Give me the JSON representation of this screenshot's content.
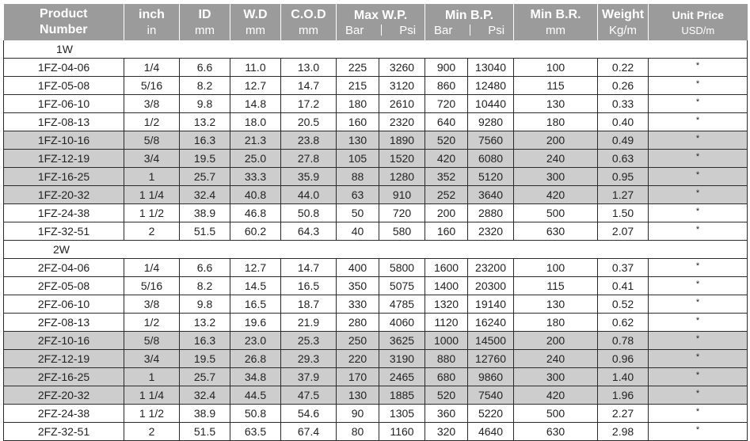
{
  "headers": [
    {
      "key": "product",
      "line1": "Product",
      "line2": "Number"
    },
    {
      "key": "inch",
      "line1": "inch",
      "line2": "in"
    },
    {
      "key": "id",
      "line1": "ID",
      "line2": "mm"
    },
    {
      "key": "wd",
      "line1": "W.D",
      "line2": "mm"
    },
    {
      "key": "cod",
      "line1": "C.O.D",
      "line2": "mm"
    },
    {
      "key": "max_wp",
      "line1": "Max W.P.",
      "sub": [
        "Bar",
        "Psi"
      ]
    },
    {
      "key": "min_bp",
      "line1": "Min B.P.",
      "sub": [
        "Bar",
        "Psi"
      ]
    },
    {
      "key": "min_br",
      "line1": "Min B.R.",
      "line2": "mm"
    },
    {
      "key": "weight",
      "line1": "Weight",
      "line2": "Kg/m"
    },
    {
      "key": "price",
      "line1": "Unit Price",
      "line2": "USD/m"
    }
  ],
  "groups": [
    {
      "label": "1W",
      "rows": [
        {
          "cells": [
            "1FZ-04-06",
            "1/4",
            "6.6",
            "11.0",
            "13.0",
            "225",
            "3260",
            "900",
            "13040",
            "100",
            "0.22",
            "*"
          ],
          "shaded": false
        },
        {
          "cells": [
            "1FZ-05-08",
            "5/16",
            "8.2",
            "12.7",
            "14.7",
            "215",
            "3120",
            "860",
            "12480",
            "115",
            "0.26",
            "*"
          ],
          "shaded": false
        },
        {
          "cells": [
            "1FZ-06-10",
            "3/8",
            "9.8",
            "14.8",
            "17.2",
            "180",
            "2610",
            "720",
            "10440",
            "130",
            "0.33",
            "*"
          ],
          "shaded": false
        },
        {
          "cells": [
            "1FZ-08-13",
            "1/2",
            "13.2",
            "18.0",
            "20.5",
            "160",
            "2320",
            "640",
            "9280",
            "180",
            "0.40",
            "*"
          ],
          "shaded": false
        },
        {
          "cells": [
            "1FZ-10-16",
            "5/8",
            "16.3",
            "21.3",
            "23.8",
            "130",
            "1890",
            "520",
            "7560",
            "200",
            "0.49",
            "*"
          ],
          "shaded": true
        },
        {
          "cells": [
            "1FZ-12-19",
            "3/4",
            "19.5",
            "25.0",
            "27.8",
            "105",
            "1520",
            "420",
            "6080",
            "240",
            "0.63",
            "*"
          ],
          "shaded": true
        },
        {
          "cells": [
            "1FZ-16-25",
            "1",
            "25.7",
            "33.3",
            "35.9",
            "88",
            "1280",
            "352",
            "5120",
            "300",
            "0.95",
            "*"
          ],
          "shaded": true
        },
        {
          "cells": [
            "1FZ-20-32",
            "1 1/4",
            "32.4",
            "40.8",
            "44.0",
            "63",
            "910",
            "252",
            "3640",
            "420",
            "1.27",
            "*"
          ],
          "shaded": true
        },
        {
          "cells": [
            "1FZ-24-38",
            "1 1/2",
            "38.9",
            "46.8",
            "50.8",
            "50",
            "720",
            "200",
            "2880",
            "500",
            "1.50",
            "*"
          ],
          "shaded": false
        },
        {
          "cells": [
            "1FZ-32-51",
            "2",
            "51.5",
            "60.2",
            "64.3",
            "40",
            "580",
            "160",
            "2320",
            "630",
            "2.07",
            "*"
          ],
          "shaded": false
        }
      ]
    },
    {
      "label": "2W",
      "rows": [
        {
          "cells": [
            "2FZ-04-06",
            "1/4",
            "6.6",
            "12.7",
            "14.7",
            "400",
            "5800",
            "1600",
            "23200",
            "100",
            "0.37",
            "*"
          ],
          "shaded": false
        },
        {
          "cells": [
            "2FZ-05-08",
            "5/16",
            "8.2",
            "14.5",
            "16.5",
            "350",
            "5075",
            "1400",
            "20300",
            "115",
            "0.41",
            "*"
          ],
          "shaded": false
        },
        {
          "cells": [
            "2FZ-06-10",
            "3/8",
            "9.8",
            "16.5",
            "18.7",
            "330",
            "4785",
            "1320",
            "19140",
            "130",
            "0.52",
            "*"
          ],
          "shaded": false
        },
        {
          "cells": [
            "2FZ-08-13",
            "1/2",
            "13.2",
            "19.6",
            "21.9",
            "280",
            "4060",
            "1120",
            "16240",
            "180",
            "0.62",
            "*"
          ],
          "shaded": false
        },
        {
          "cells": [
            "2FZ-10-16",
            "5/8",
            "16.3",
            "23.0",
            "25.3",
            "250",
            "3625",
            "1000",
            "14500",
            "200",
            "0.78",
            "*"
          ],
          "shaded": true
        },
        {
          "cells": [
            "2FZ-12-19",
            "3/4",
            "19.5",
            "26.8",
            "29.3",
            "220",
            "3190",
            "880",
            "12760",
            "240",
            "0.96",
            "*"
          ],
          "shaded": true
        },
        {
          "cells": [
            "2FZ-16-25",
            "1",
            "25.7",
            "34.8",
            "37.9",
            "170",
            "2465",
            "680",
            "9860",
            "300",
            "1.40",
            "*"
          ],
          "shaded": true
        },
        {
          "cells": [
            "2FZ-20-32",
            "1 1/4",
            "32.4",
            "44.5",
            "47.5",
            "130",
            "1885",
            "520",
            "7540",
            "420",
            "1.96",
            "*"
          ],
          "shaded": true
        },
        {
          "cells": [
            "2FZ-24-38",
            "1 1/2",
            "38.9",
            "50.8",
            "54.6",
            "90",
            "1305",
            "360",
            "5220",
            "500",
            "2.27",
            "*"
          ],
          "shaded": false
        },
        {
          "cells": [
            "2FZ-32-51",
            "2",
            "51.5",
            "63.5",
            "67.4",
            "80",
            "1160",
            "320",
            "4640",
            "630",
            "2.98",
            "*"
          ],
          "shaded": false
        }
      ]
    }
  ],
  "colors": {
    "header_bg": "#9b9b9b",
    "shaded_row": "#cdcdcd",
    "grid": "#2a2a2a"
  }
}
